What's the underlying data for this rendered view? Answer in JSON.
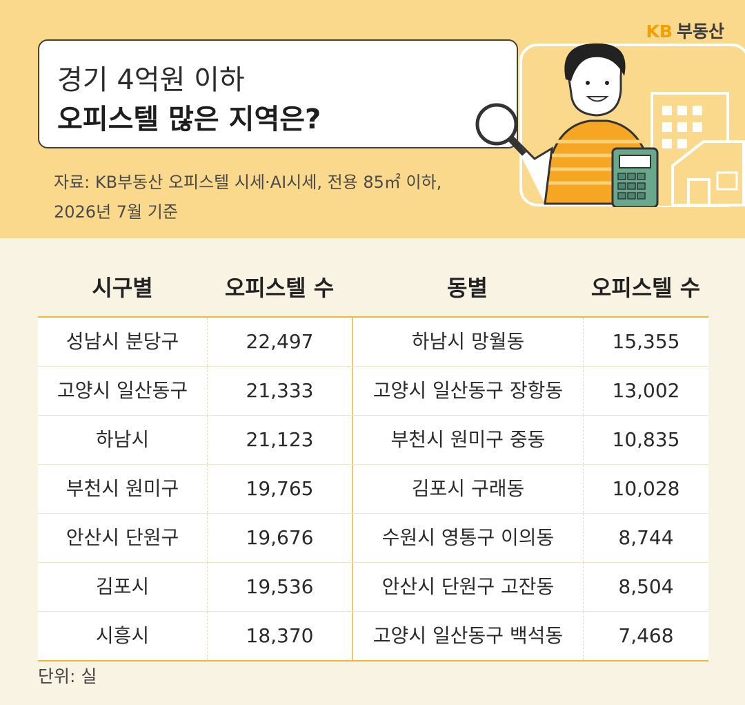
{
  "brand": {
    "logo": "KB",
    "name": "부동산"
  },
  "header": {
    "title_line1": "경기 4억원 이하",
    "title_line2": "오피스텔 많은 지역은?",
    "source_line1": "자료: KB부동산 오피스텔 시세·AI시세, 전용 85㎡ 이하,",
    "source_line2": "2026년 7월 기준"
  },
  "table": {
    "columns": [
      "시구별",
      "오피스텔 수",
      "동별",
      "오피스텔 수"
    ],
    "rows": [
      [
        "성남시 분당구",
        "22,497",
        "하남시 망월동",
        "15,355"
      ],
      [
        "고양시 일산동구",
        "21,333",
        "고양시 일산동구 장항동",
        "13,002"
      ],
      [
        "하남시",
        "21,123",
        "부천시 원미구 중동",
        "10,835"
      ],
      [
        "부천시 원미구",
        "19,765",
        "김포시 구래동",
        "10,028"
      ],
      [
        "안산시 단원구",
        "19,676",
        "수원시 영통구 이의동",
        "8,744"
      ],
      [
        "김포시",
        "19,536",
        "안산시 단원구 고잔동",
        "8,504"
      ],
      [
        "시흥시",
        "18,370",
        "고양시 일산동구 백석동",
        "7,468"
      ]
    ]
  },
  "footer": {
    "unit": "단위: 실"
  }
}
